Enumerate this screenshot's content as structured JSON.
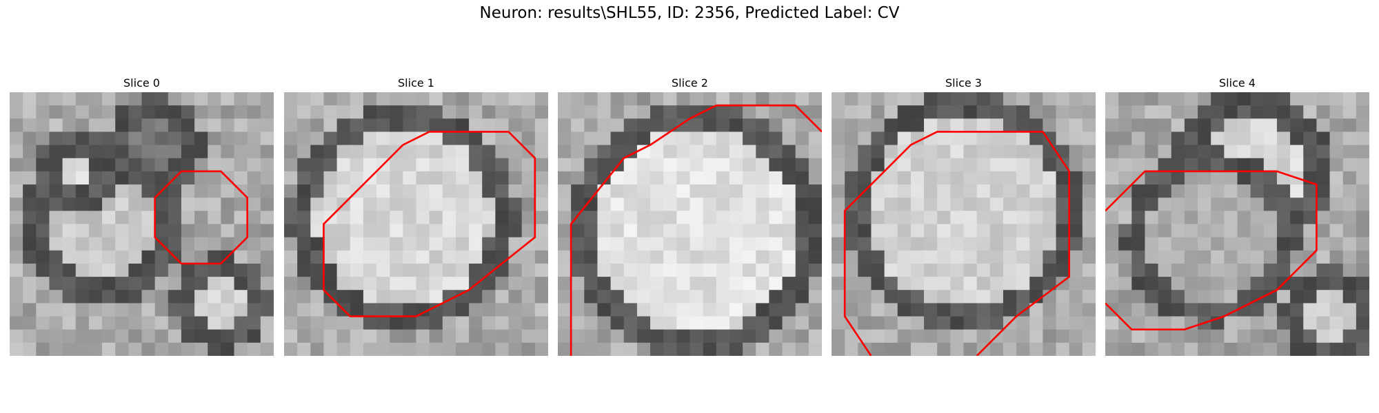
{
  "figure": {
    "title": "Neuron: results\\SHL55, ID: 2356, Predicted Label: CV",
    "contour_color": "#ff0000"
  },
  "panels": [
    {
      "title": "Slice 0",
      "image_description": "grayscale microscopy slice, dark ring around bright lower-left body",
      "contour": [
        [
          13,
          6
        ],
        [
          16,
          6
        ],
        [
          18,
          8
        ],
        [
          18,
          11
        ],
        [
          16,
          13
        ],
        [
          13,
          13
        ],
        [
          11,
          11
        ],
        [
          11,
          8
        ],
        [
          13,
          6
        ]
      ]
    },
    {
      "title": "Slice 1",
      "image_description": "grayscale microscopy slice, large bright oval cell",
      "contour": [
        [
          11,
          3
        ],
        [
          17,
          3
        ],
        [
          19,
          5
        ],
        [
          19,
          11
        ],
        [
          14,
          15
        ],
        [
          12,
          16
        ],
        [
          10,
          17
        ],
        [
          5,
          17
        ],
        [
          3,
          15
        ],
        [
          3,
          10
        ],
        [
          7,
          6
        ],
        [
          9,
          4
        ],
        [
          11,
          3
        ]
      ]
    },
    {
      "title": "Slice 2",
      "image_description": "grayscale microscopy slice, very bright oval cell",
      "contour": [
        [
          1,
          21
        ],
        [
          1,
          10
        ],
        [
          5,
          5
        ],
        [
          7,
          4
        ],
        [
          10,
          2
        ],
        [
          12,
          1
        ],
        [
          18,
          1
        ],
        [
          20,
          3
        ]
      ]
    },
    {
      "title": "Slice 3",
      "image_description": "grayscale microscopy slice, bright cell with dark border",
      "contour": [
        [
          3,
          20
        ],
        [
          1,
          17
        ],
        [
          1,
          9
        ],
        [
          3,
          7
        ],
        [
          6,
          4
        ],
        [
          8,
          3
        ],
        [
          16,
          3
        ],
        [
          18,
          6
        ],
        [
          18,
          14
        ],
        [
          14,
          17
        ],
        [
          11,
          20
        ]
      ]
    },
    {
      "title": "Slice 4",
      "image_description": "grayscale microscopy slice, bright round cell upper right",
      "contour": [
        [
          0,
          9
        ],
        [
          3,
          6
        ],
        [
          13,
          6
        ],
        [
          16,
          7
        ],
        [
          16,
          12
        ],
        [
          13,
          15
        ],
        [
          9,
          17
        ],
        [
          6,
          18
        ],
        [
          2,
          18
        ],
        [
          0,
          16
        ]
      ]
    }
  ]
}
